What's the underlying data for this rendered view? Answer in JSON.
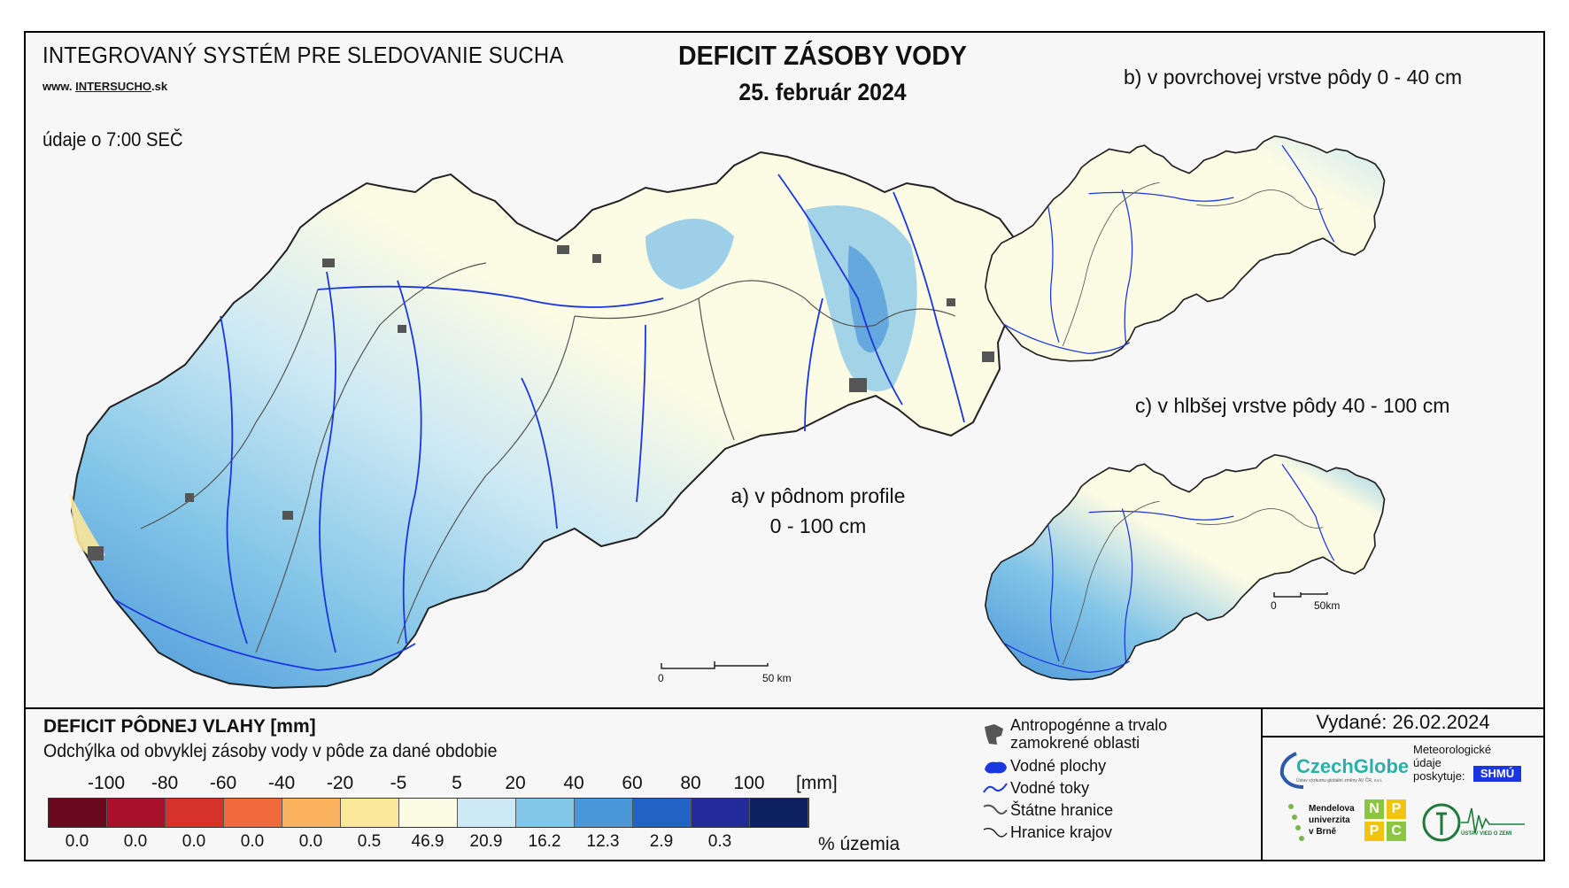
{
  "header": {
    "system_title": "INTEGROVANÝ SYSTÉM PRE SLEDOVANIE SUCHA",
    "website_prefix": "www.",
    "website_name": "INTERSUCHO",
    "website_suffix": ".sk",
    "data_time": "údaje o 7:00 SEČ",
    "main_title": "DEFICIT ZÁSOBY VODY",
    "main_date": "25. február 2024"
  },
  "maps": {
    "a_line1": "a) v pôdnom profile",
    "a_line2": "0 - 100 cm",
    "b_label": "b) v povrchovej vrstve pôdy 0 - 40 cm",
    "c_label": "c) v hlbšej vrstve pôdy 40 - 100 cm",
    "scale_main_start": "0",
    "scale_main_end": "50 km",
    "scale_small_start": "0",
    "scale_small_end": "50km"
  },
  "legend": {
    "title": "DEFICIT PÔDNEJ VLAHY [mm]",
    "subtitle": "Odchýlka od obvyklej zásoby vody v pôde za dané obdobie",
    "ticks": [
      "-100",
      "-80",
      "-60",
      "-40",
      "-20",
      "-5",
      "5",
      "20",
      "40",
      "60",
      "80",
      "100"
    ],
    "unit": "[mm]",
    "colors": [
      "#6b0a1e",
      "#a8112a",
      "#d6322b",
      "#f06a3e",
      "#fbb25e",
      "#fbe79a",
      "#fcfbe4",
      "#cde9f4",
      "#84c6e8",
      "#4a96d8",
      "#2162c4",
      "#232a9a",
      "#0d2160"
    ],
    "percent_values": [
      "0.0",
      "0.0",
      "0.0",
      "0.0",
      "0.0",
      "0.5",
      "46.9",
      "20.9",
      "16.2",
      "12.3",
      "2.9",
      "0.3"
    ],
    "percent_label": "% územia"
  },
  "symbols": {
    "anthropogenic_1": "Antropogénne a trvalo",
    "anthropogenic_2": "zamokrené oblasti",
    "water_bodies": "Vodné plochy",
    "water_streams": "Vodné toky",
    "state_border": "Štátne hranice",
    "region_border": "Hranice krajov"
  },
  "issued": "Vydané: 26.02.2024",
  "logos": {
    "czechglobe": "CzechGlobe",
    "czechglobe_sub": "Ústav výzkumu globální změny AV ČR, v.v.i.",
    "meteo_1": "Meteorologické",
    "meteo_2": "údaje",
    "meteo_3": "poskytuje:",
    "shmu": "SHMÚ",
    "mendelu_1": "Mendelova",
    "mendelu_2": "univerzita",
    "mendelu_3": "v Brně",
    "nppc_n": "N",
    "nppc_p1": "P",
    "nppc_p2": "P",
    "nppc_c": "C",
    "ustav": "ÚSTAV VIED O ZEMI"
  }
}
